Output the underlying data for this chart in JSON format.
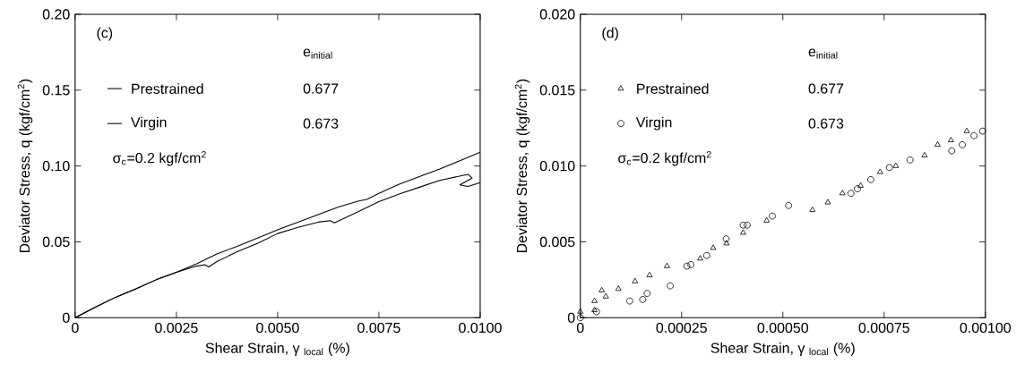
{
  "chart_data": [
    {
      "type": "line",
      "xlabel": "Shear Strain, γ $_{local}$ (%)",
      "ylabel": "Deviator Stress, q (kgf/cm$^{2}$)",
      "legend_title": "e$_{initial}$",
      "legend": "top left",
      "line_style": "solid",
      "marker": "none",
      "xlim": [
        0,
        0.01
      ],
      "ylim": [
        0,
        0.2
      ],
      "xticks": [
        0,
        0.0025,
        {
          "value": 0.005,
          "label": "0.0050"
        },
        0.0075,
        {
          "value": 0.01,
          "label": "0.0100"
        }
      ],
      "yticks": [
        0,
        0.05,
        {
          "value": 0.1,
          "label": "0.10"
        },
        0.15,
        {
          "value": 0.2,
          "label": "0.20"
        }
      ],
      "annotations": [
        "(c)",
        "σ$_{c}$=0.2 kgf/cm$^{2}$",
        "0.677",
        "0.673"
      ],
      "series": [
        {
          "name": "Prestrained",
          "color": "#000000",
          "x": [
            0,
            0.0005,
            0.001,
            0.0015,
            0.002,
            0.0025,
            0.003,
            0.0035,
            0.004,
            0.0045,
            0.005,
            0.0055,
            0.006,
            0.0065,
            0.007,
            0.0072,
            0.0075,
            0.008,
            0.0085,
            0.009,
            0.0095,
            0.01
          ],
          "values": [
            0,
            0.007,
            0.0135,
            0.019,
            0.025,
            0.03,
            0.0355,
            0.042,
            0.047,
            0.0525,
            0.058,
            0.063,
            0.068,
            0.073,
            0.077,
            0.078,
            0.082,
            0.088,
            0.093,
            0.098,
            0.1035,
            0.109
          ]
        },
        {
          "name": "Virgin",
          "color": "#000000",
          "x": [
            0,
            0.0005,
            0.001,
            0.0015,
            0.002,
            0.0025,
            0.003,
            0.0032,
            0.0033,
            0.0035,
            0.004,
            0.0045,
            0.005,
            0.0055,
            0.006,
            0.0063,
            0.0064,
            0.0066,
            0.007,
            0.0075,
            0.008,
            0.0085,
            0.009,
            0.0097,
            0.0098,
            0.0095,
            0.0097,
            0.01
          ],
          "values": [
            0,
            0.007,
            0.0135,
            0.019,
            0.025,
            0.03,
            0.034,
            0.035,
            0.0335,
            0.037,
            0.0435,
            0.049,
            0.0555,
            0.0595,
            0.063,
            0.064,
            0.0625,
            0.065,
            0.07,
            0.0765,
            0.0815,
            0.086,
            0.0905,
            0.0945,
            0.092,
            0.0875,
            0.0865,
            0.089
          ]
        }
      ]
    },
    {
      "type": "scatter",
      "xlabel": "Shear Strain, γ $_{local}$ (%)",
      "ylabel": "Deviator Stress, q (kgf/cm$^{2}$)",
      "legend_title": "e$_{initial}$",
      "legend": "top left",
      "xlim": [
        0,
        0.001
      ],
      "ylim": [
        0,
        0.02
      ],
      "xticks": [
        0,
        0.00025,
        {
          "value": 0.0005,
          "label": "0.00050"
        },
        0.00075,
        {
          "value": 0.001,
          "label": "0.00100"
        }
      ],
      "yticks": [
        0,
        0.005,
        {
          "value": 0.01,
          "label": "0.010"
        },
        0.015,
        {
          "value": 0.02,
          "label": "0.020"
        }
      ],
      "annotations": [
        "(d)",
        "σ$_{c}$=0.2 kgf/cm$^{2}$",
        "0.677",
        "0.673"
      ],
      "series": [
        {
          "name": "Prestrained",
          "color": "#000000",
          "marker": "triangle",
          "x": [
            0,
            3.5e-05,
            3.5e-05,
            5.3e-05,
            6.3e-05,
            9.4e-05,
            0.000135,
            0.000171,
            0.000214,
            0.000296,
            0.000328,
            0.000361,
            0.000402,
            0.00046,
            0.000573,
            0.000611,
            0.000647,
            0.000692,
            0.00074,
            0.000779,
            0.00085,
            0.000882,
            0.000915,
            0.000954
          ],
          "values": [
            0.0004,
            0.0011,
            0.0005,
            0.0018,
            0.0014,
            0.0019,
            0.0024,
            0.0028,
            0.0034,
            0.0039,
            0.0046,
            0.0049,
            0.0056,
            0.0064,
            0.0071,
            0.0076,
            0.0082,
            0.0087,
            0.0096,
            0.01,
            0.0107,
            0.0114,
            0.0117,
            0.0123
          ]
        },
        {
          "name": "Virgin",
          "color": "#000000",
          "marker": "circle",
          "x": [
            0,
            4e-05,
            0.000122,
            0.000154,
            0.000165,
            0.000222,
            0.000263,
            0.000273,
            0.000312,
            0.00036,
            0.000402,
            0.000412,
            0.000474,
            0.000514,
            0.000668,
            0.000684,
            0.000717,
            0.000763,
            0.000814,
            0.000917,
            0.000943,
            0.000972,
            0.000993
          ],
          "values": [
            0,
            0.0004,
            0.0011,
            0.0012,
            0.0016,
            0.0021,
            0.0034,
            0.0035,
            0.0041,
            0.0052,
            0.0061,
            0.0061,
            0.0067,
            0.0074,
            0.0082,
            0.0085,
            0.0091,
            0.0099,
            0.0104,
            0.011,
            0.0114,
            0.012,
            0.0123
          ]
        }
      ]
    }
  ]
}
